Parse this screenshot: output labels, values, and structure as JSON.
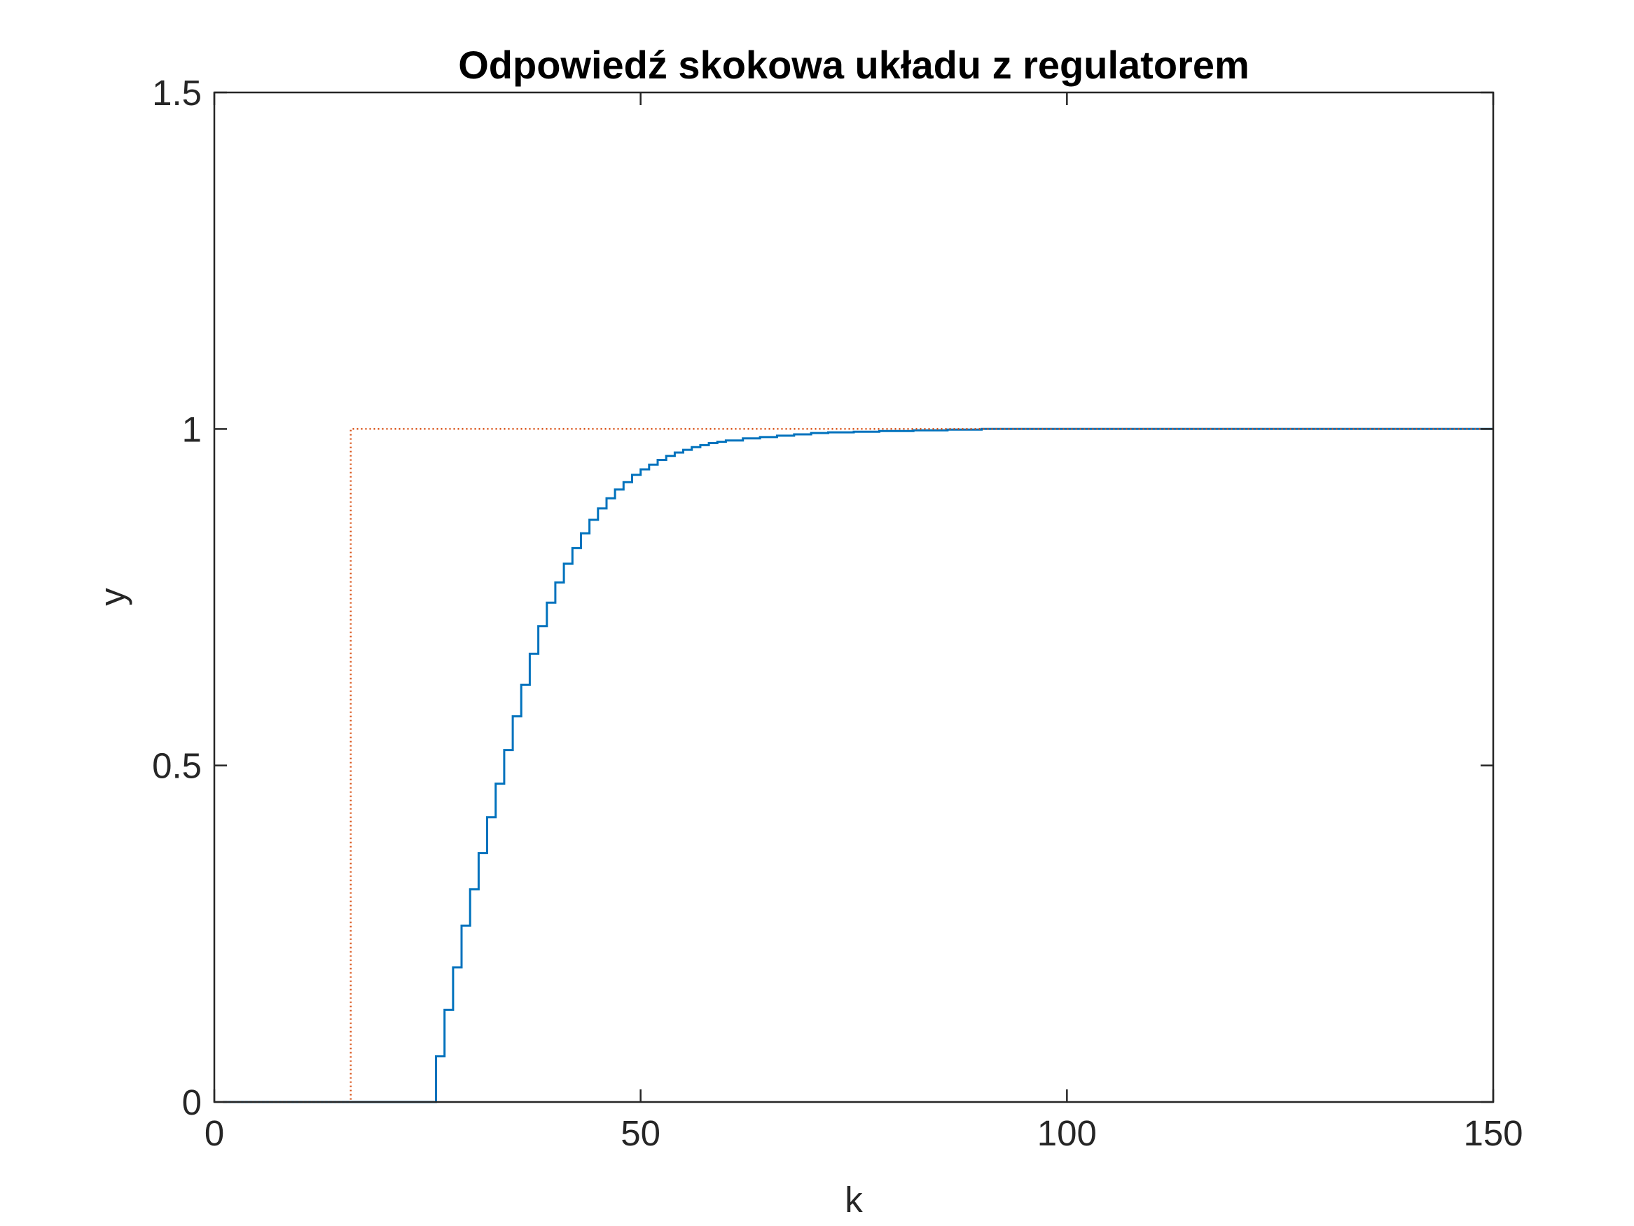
{
  "chart_data": {
    "type": "line",
    "title": "Odpowiedź skokowa układu z regulatorem",
    "xlabel": "k",
    "ylabel": "y",
    "xlim": [
      0,
      150
    ],
    "ylim": [
      0,
      1.5
    ],
    "xticks": [
      0,
      50,
      100,
      150
    ],
    "xtick_labels": [
      "0",
      "50",
      "100",
      "150"
    ],
    "yticks": [
      0,
      0.5,
      1,
      1.5
    ],
    "ytick_labels": [
      "0",
      "0.5",
      "1",
      "1.5"
    ],
    "grid": false,
    "series": [
      {
        "style": "stairs",
        "color": "#0072BD",
        "x": [
          1,
          26,
          27,
          28,
          29,
          30,
          31,
          32,
          33,
          34,
          35,
          36,
          37,
          38,
          39,
          40,
          41,
          42,
          43,
          44,
          45,
          46,
          47,
          48,
          49,
          50,
          51,
          52,
          53,
          54,
          55,
          56,
          57,
          58,
          59,
          60,
          62,
          64,
          66,
          68,
          70,
          72,
          75,
          78,
          82,
          86,
          90,
          100,
          120,
          150
        ],
        "y": [
          0,
          0.068,
          0.137,
          0.2,
          0.262,
          0.316,
          0.37,
          0.423,
          0.473,
          0.523,
          0.573,
          0.62,
          0.666,
          0.707,
          0.742,
          0.772,
          0.8,
          0.823,
          0.845,
          0.865,
          0.882,
          0.897,
          0.91,
          0.921,
          0.932,
          0.94,
          0.947,
          0.954,
          0.96,
          0.965,
          0.969,
          0.973,
          0.976,
          0.979,
          0.981,
          0.983,
          0.986,
          0.988,
          0.99,
          0.992,
          0.994,
          0.995,
          0.996,
          0.997,
          0.998,
          0.999,
          1.0,
          1.0,
          1.0,
          1.0
        ]
      },
      {
        "style": "stairs-dotted",
        "color": "#D95319",
        "x": [
          1,
          16,
          150
        ],
        "y": [
          0,
          1,
          1
        ]
      }
    ]
  }
}
